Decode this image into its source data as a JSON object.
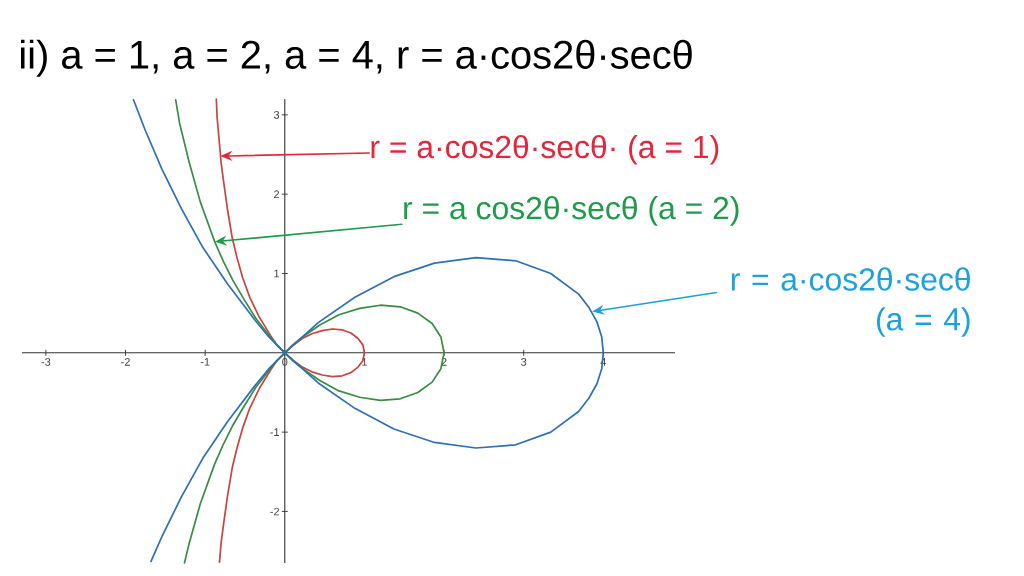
{
  "chart_data": {
    "type": "line",
    "title": "ii)   a = 1, a = 2, a = 4,   r = a·cos2θ·secθ",
    "xlim": [
      -3.3,
      4.9
    ],
    "ylim": [
      -2.65,
      3.2
    ],
    "xticks": [
      -3,
      -2,
      -1,
      0,
      1,
      2,
      3,
      4
    ],
    "yticks": [
      -2,
      -1,
      1,
      2,
      3
    ],
    "marker": "none",
    "line_style": "solid",
    "annotations": [
      {
        "text": "r = a·cos2θ·secθ·   (a = 1)",
        "x": -0.81,
        "y": 2.48
      },
      {
        "text": "r = a cos2θ·secθ (a = 2)",
        "x": -0.88,
        "y": 1.4
      },
      {
        "text": "r = a·cos2θ·secθ (a = 4)",
        "x": 3.86,
        "y": 0.52
      }
    ],
    "series": [
      {
        "color": "#c74440",
        "x": [
          -0.86,
          -0.85,
          -0.82,
          -0.8,
          -0.77,
          -0.72,
          -0.66,
          -0.6,
          -0.53,
          -0.44,
          -0.32,
          -0.18,
          -0.1,
          0,
          0.1,
          0.22,
          0.34,
          0.47,
          0.6,
          0.72,
          0.83,
          0.92,
          0.98,
          1,
          0.98,
          0.92,
          0.83,
          0.72,
          0.6,
          0.47,
          0.34,
          0.22,
          0.1,
          0,
          -0.1,
          -0.18,
          -0.32,
          -0.44,
          -0.53,
          -0.6,
          -0.66,
          -0.72,
          -0.77,
          -0.8,
          -0.82
        ],
        "values": [
          3.2,
          2.97,
          2.63,
          2.4,
          2.17,
          1.81,
          1.45,
          1.2,
          0.95,
          0.7,
          0.45,
          0.22,
          0.1,
          0,
          -0.09,
          -0.18,
          -0.24,
          -0.28,
          -0.3,
          -0.29,
          -0.25,
          -0.18,
          -0.1,
          0,
          0.1,
          0.18,
          0.25,
          0.29,
          0.3,
          0.28,
          0.24,
          0.18,
          0.09,
          0,
          -0.1,
          -0.22,
          -0.45,
          -0.7,
          -0.95,
          -1.2,
          -1.45,
          -1.81,
          -2.17,
          -2.4,
          -2.64
        ]
      },
      {
        "color": "#388c46",
        "x": [
          -1.37,
          -1.32,
          -1.2,
          -1.06,
          -0.97,
          -0.88,
          -0.77,
          -0.65,
          -0.51,
          -0.36,
          -0.19,
          -0.1,
          0,
          0.1,
          0.21,
          0.44,
          0.68,
          0.94,
          1.2,
          1.45,
          1.67,
          1.85,
          1.96,
          2,
          1.96,
          1.85,
          1.67,
          1.45,
          1.2,
          0.94,
          0.68,
          0.44,
          0.21,
          0.1,
          0,
          -0.1,
          -0.19,
          -0.36,
          -0.51,
          -0.65,
          -0.77,
          -0.88,
          -1.06,
          -1.2,
          -1.26
        ],
        "values": [
          3.19,
          2.89,
          2.4,
          1.9,
          1.65,
          1.4,
          1.15,
          0.91,
          0.67,
          0.43,
          0.21,
          0.1,
          0,
          -0.1,
          -0.19,
          -0.35,
          -0.48,
          -0.56,
          -0.6,
          -0.58,
          -0.5,
          -0.37,
          -0.2,
          0,
          0.2,
          0.37,
          0.5,
          0.58,
          0.6,
          0.56,
          0.48,
          0.35,
          0.19,
          0.1,
          0,
          -0.1,
          -0.21,
          -0.43,
          -0.67,
          -0.91,
          -1.15,
          -1.4,
          -1.9,
          -2.4,
          -2.65
        ]
      },
      {
        "color": "#2d70b3",
        "x": [
          -1.9,
          -1.75,
          -1.54,
          -1.3,
          -1.03,
          -0.72,
          -0.38,
          -0.2,
          0,
          0.21,
          0.42,
          0.88,
          1.37,
          1.88,
          2.4,
          2.9,
          3.34,
          3.69,
          3.82,
          3.92,
          3.98,
          4,
          3.98,
          3.92,
          3.82,
          3.69,
          3.34,
          2.9,
          2.4,
          1.88,
          1.37,
          0.88,
          0.42,
          0.21,
          0,
          -0.2,
          -0.38,
          -0.72,
          -1.03,
          -1.3,
          -1.54,
          -1.68
        ],
        "values": [
          3.19,
          2.8,
          2.31,
          1.82,
          1.33,
          0.87,
          0.42,
          0.2,
          0,
          -0.19,
          -0.38,
          -0.7,
          -0.96,
          -1.13,
          -1.2,
          -1.16,
          -1.0,
          -0.74,
          -0.57,
          -0.39,
          -0.2,
          0,
          0.2,
          0.39,
          0.57,
          0.74,
          1.0,
          1.16,
          1.2,
          1.13,
          0.96,
          0.7,
          0.38,
          0.19,
          0,
          -0.2,
          -0.42,
          -0.87,
          -1.33,
          -1.82,
          -2.31,
          -2.63
        ]
      }
    ]
  }
}
